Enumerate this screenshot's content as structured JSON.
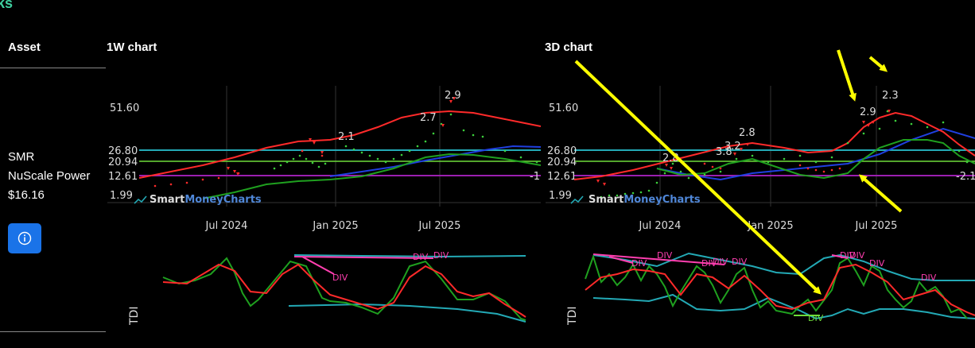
{
  "header": {
    "fragment": "ks"
  },
  "columns": {
    "asset": "Asset",
    "chart_1w": "1W chart",
    "chart_3d": "3D chart"
  },
  "asset": {
    "ticker": "SMR",
    "name": "NuScale Power",
    "price": "$16.16"
  },
  "info_button": {
    "icon": "info-circle-icon"
  },
  "watermark": {
    "smart": "Smart",
    "money": "MoneyCharts"
  },
  "colors": {
    "accent": "#1a73e8",
    "header": "#3fd0a0",
    "red": "#ff2a2a",
    "green": "#1fa01f",
    "blue": "#1f3fe0",
    "cyan": "#23a9b5",
    "purple": "#9b1fb0",
    "lime": "#6fdc3a",
    "annot_yellow": "#ffff00",
    "div_pink": "#ff3fb0"
  },
  "chart_1w": {
    "type": "line",
    "price_levels": [
      "51.60",
      "26.80",
      "20.94",
      "12.61",
      "1.99"
    ],
    "x_ticks": [
      "Jul 2024",
      "Jan 2025",
      "Jul 2025"
    ],
    "peak_labels": [
      "2.9",
      "2.7",
      "2.1"
    ],
    "edge_label": "-1."
  },
  "chart_3d": {
    "type": "line",
    "price_levels": [
      "51.60",
      "26.80",
      "20.94",
      "12.61",
      "1.99"
    ],
    "x_ticks": [
      "Jul 2024",
      "Jan 2025",
      "Jul 2025"
    ],
    "peak_labels": [
      "2.3",
      "2.9",
      "2.8",
      "3.2",
      "3.8",
      "2.8"
    ],
    "edge_label": "-2.1"
  },
  "tdi_1w": {
    "label": "TDI",
    "div_labels": [
      "DIV",
      "DIV",
      "DIV"
    ]
  },
  "tdi_3d": {
    "label": "TDI",
    "div_labels": [
      "DIV",
      "DIV",
      "DIV",
      "DIV",
      "DIV",
      "DIV",
      "DIV",
      "DIV",
      "DIV",
      "DIV"
    ]
  }
}
